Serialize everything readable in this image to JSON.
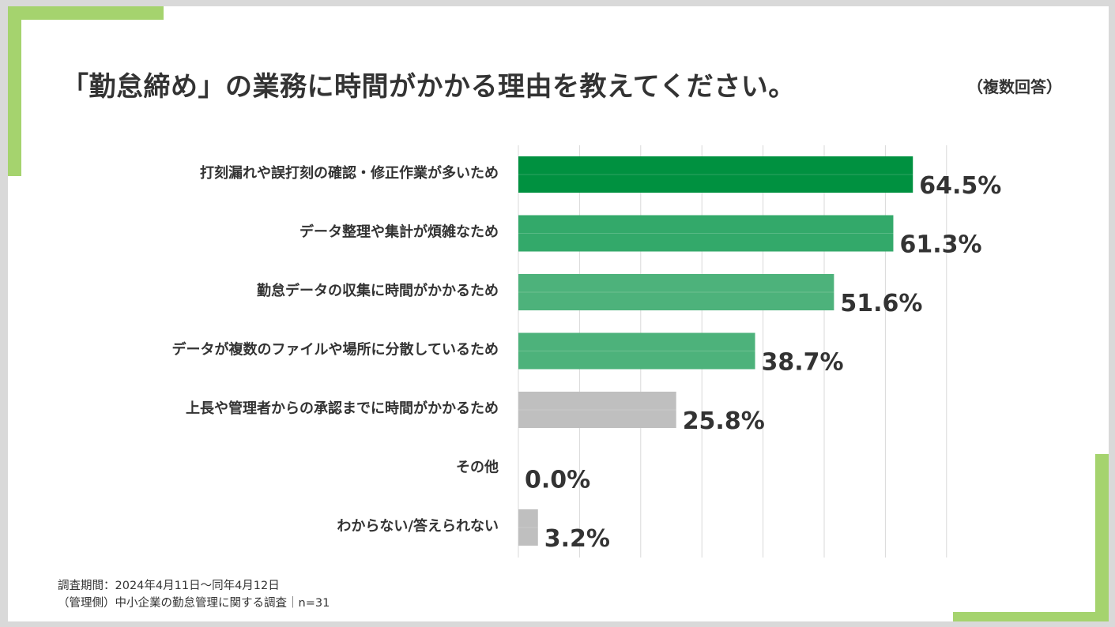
{
  "title": "「勤怠締め」の業務に時間がかかる理由を教えてください。",
  "subtitle": "（複数回答）",
  "footer": {
    "line1": "調査期間：2024年4月11日～同年4月12日",
    "line2": "（管理側）中小企業の勤怠管理に関する調査｜n=31"
  },
  "colors": {
    "accent": "#a5d36e",
    "bar_dark_green": "#009140",
    "bar_green": "#33a96a",
    "bar_light_green": "#4db27b",
    "bar_gray": "#bfbfbf"
  },
  "chart_data": {
    "type": "bar",
    "orientation": "horizontal",
    "categories": [
      "打刻漏れや誤打刻の確認・修正作業が多いため",
      "データ整理や集計が煩雑なため",
      "勤怠データの収集に時間がかかるため",
      "データが複数のファイルや場所に分散しているため",
      "上長や管理者からの承認までに時間がかかるため",
      "その他",
      "わからない/答えられない"
    ],
    "values": [
      64.5,
      61.3,
      51.6,
      38.7,
      25.8,
      0.0,
      3.2
    ],
    "value_labels": [
      "64.5%",
      "61.3%",
      "51.6%",
      "38.7%",
      "25.8%",
      "0.0%",
      "3.2%"
    ],
    "bar_colors": [
      "#009140",
      "#33a96a",
      "#4db27b",
      "#4db27b",
      "#bfbfbf",
      "#bfbfbf",
      "#bfbfbf"
    ],
    "xlim": [
      0,
      70
    ],
    "grid": true,
    "legend": "none"
  }
}
